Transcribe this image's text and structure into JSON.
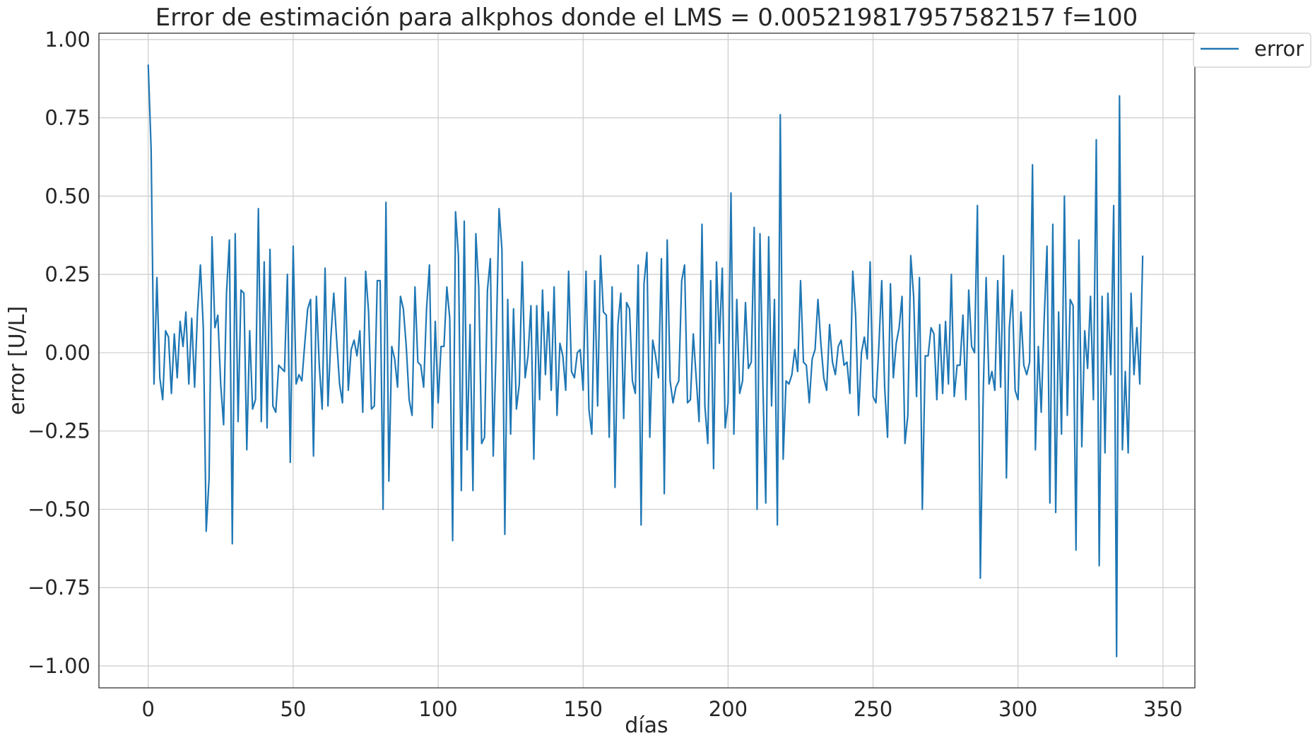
{
  "chart_data": {
    "type": "line",
    "title": "Error de estimación para alkphos donde el LMS = 0.005219817957582157 f=100",
    "xlabel": "días",
    "ylabel": "error  [U/L]",
    "xlim": [
      -17,
      361
    ],
    "ylim": [
      -1.07,
      1.02
    ],
    "xticks": [
      0,
      50,
      100,
      150,
      200,
      250,
      300,
      350
    ],
    "xtick_labels": [
      "0",
      "50",
      "100",
      "150",
      "200",
      "250",
      "300",
      "350"
    ],
    "yticks": [
      -1.0,
      -0.75,
      -0.5,
      -0.25,
      0.0,
      0.25,
      0.5,
      0.75,
      1.0
    ],
    "ytick_labels": [
      "−1.00",
      "−0.75",
      "−0.50",
      "−0.25",
      "0.00",
      "0.25",
      "0.50",
      "0.75",
      "1.00"
    ],
    "grid": true,
    "legend_position": "outside-top-right",
    "series": [
      {
        "name": "error",
        "color": "#1f77b4",
        "values": [
          0.92,
          0.65,
          -0.1,
          0.24,
          -0.08,
          -0.15,
          0.07,
          0.05,
          -0.13,
          0.06,
          -0.08,
          0.1,
          0.02,
          0.13,
          -0.1,
          0.11,
          -0.11,
          0.13,
          0.28,
          0.08,
          -0.57,
          -0.4,
          0.37,
          0.08,
          0.12,
          -0.1,
          -0.23,
          0.19,
          0.36,
          -0.61,
          0.38,
          -0.22,
          0.2,
          0.19,
          -0.31,
          0.07,
          -0.18,
          -0.15,
          0.46,
          -0.22,
          0.29,
          -0.24,
          0.33,
          -0.17,
          -0.19,
          -0.04,
          -0.05,
          -0.06,
          0.25,
          -0.35,
          0.34,
          -0.1,
          -0.07,
          -0.09,
          0.03,
          0.14,
          0.17,
          -0.33,
          0.18,
          -0.04,
          -0.18,
          0.27,
          -0.17,
          0.05,
          0.19,
          0.04,
          -0.1,
          -0.16,
          0.24,
          -0.12,
          0.01,
          0.04,
          -0.01,
          0.07,
          -0.19,
          0.26,
          0.13,
          -0.18,
          -0.17,
          0.23,
          0.23,
          -0.5,
          0.48,
          -0.41,
          0.02,
          -0.02,
          -0.11,
          0.18,
          0.14,
          0.02,
          -0.15,
          -0.2,
          0.21,
          -0.03,
          -0.04,
          -0.11,
          0.14,
          0.28,
          -0.24,
          0.1,
          -0.16,
          0.02,
          0.02,
          0.21,
          0.11,
          -0.6,
          0.45,
          0.31,
          -0.44,
          0.42,
          -0.31,
          0.09,
          -0.44,
          0.38,
          0.21,
          -0.29,
          -0.27,
          0.2,
          0.3,
          -0.33,
          0.02,
          0.46,
          0.33,
          -0.58,
          0.17,
          -0.26,
          0.14,
          -0.18,
          -0.1,
          0.29,
          -0.08,
          -0.01,
          0.15,
          -0.34,
          0.15,
          -0.15,
          0.2,
          -0.07,
          0.13,
          -0.12,
          0.21,
          -0.2,
          0.03,
          -0.01,
          -0.12,
          0.26,
          -0.06,
          -0.08,
          0.0,
          0.01,
          -0.12,
          0.26,
          -0.18,
          -0.26,
          0.23,
          -0.17,
          0.31,
          0.13,
          0.12,
          -0.27,
          0.21,
          -0.43,
          0.09,
          0.19,
          -0.21,
          0.16,
          0.14,
          -0.09,
          -0.13,
          0.28,
          -0.55,
          0.22,
          0.32,
          -0.27,
          0.04,
          -0.01,
          -0.08,
          0.3,
          -0.45,
          0.36,
          -0.09,
          -0.16,
          -0.11,
          -0.09,
          0.23,
          0.28,
          -0.16,
          -0.15,
          0.06,
          -0.08,
          -0.22,
          0.41,
          -0.17,
          -0.29,
          0.23,
          -0.37,
          0.29,
          0.03,
          0.27,
          -0.24,
          -0.16,
          0.51,
          -0.26,
          0.17,
          -0.13,
          -0.09,
          0.16,
          -0.05,
          -0.03,
          0.4,
          -0.5,
          0.38,
          -0.1,
          -0.48,
          0.37,
          -0.17,
          0.17,
          -0.55,
          0.76,
          -0.34,
          -0.09,
          -0.1,
          -0.07,
          0.01,
          -0.06,
          0.23,
          -0.03,
          -0.04,
          -0.16,
          -0.02,
          0.01,
          0.17,
          0.03,
          -0.08,
          -0.12,
          0.09,
          -0.03,
          -0.07,
          0.02,
          0.04,
          -0.04,
          -0.03,
          -0.13,
          0.26,
          0.12,
          -0.2,
          0.0,
          0.05,
          -0.02,
          0.29,
          -0.14,
          -0.16,
          0.02,
          0.23,
          -0.11,
          -0.27,
          0.22,
          -0.08,
          0.03,
          0.08,
          0.18,
          -0.29,
          -0.2,
          0.31,
          0.18,
          -0.14,
          0.24,
          -0.5,
          -0.01,
          -0.01,
          0.08,
          0.06,
          -0.15,
          0.09,
          -0.13,
          0.1,
          -0.1,
          0.25,
          -0.14,
          -0.04,
          -0.04,
          0.12,
          -0.15,
          0.2,
          0.02,
          0.0,
          0.47,
          -0.72,
          -0.13,
          0.24,
          -0.1,
          -0.06,
          -0.12,
          0.23,
          -0.11,
          0.31,
          -0.4,
          0.08,
          0.2,
          -0.12,
          -0.15,
          0.13,
          -0.04,
          -0.07,
          -0.03,
          0.6,
          -0.31,
          0.02,
          -0.19,
          0.1,
          0.34,
          -0.48,
          0.41,
          -0.51,
          0.13,
          -0.26,
          0.5,
          -0.2,
          0.17,
          0.15,
          -0.63,
          0.36,
          -0.3,
          0.07,
          -0.05,
          0.18,
          -0.15,
          0.68,
          -0.68,
          0.18,
          -0.32,
          0.19,
          -0.07,
          0.47,
          -0.97,
          0.82,
          -0.31,
          -0.06,
          -0.32,
          0.19,
          -0.07,
          0.08,
          -0.1,
          0.31
        ]
      }
    ]
  }
}
